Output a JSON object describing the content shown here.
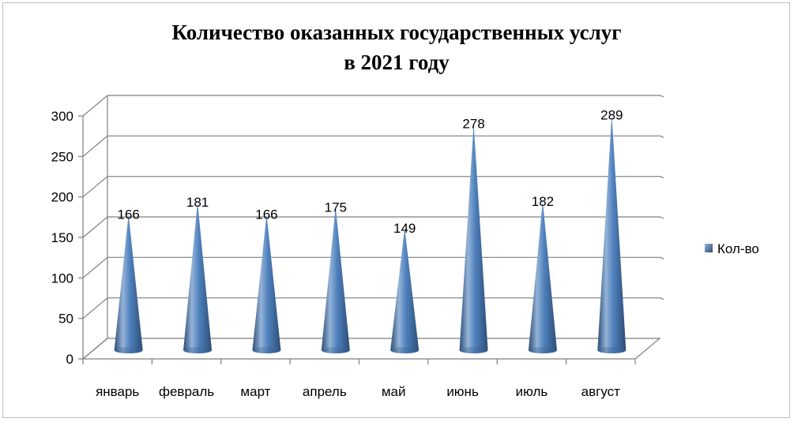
{
  "chart_data": {
    "type": "bar",
    "title_line1": "Количество оказанных государственных услуг",
    "title_line2": "в 2021 году",
    "categories": [
      "январь",
      "февраль",
      "март",
      "апрель",
      "май",
      "июнь",
      "июль",
      "август"
    ],
    "series": [
      {
        "name": "Кол-во",
        "values": [
          166,
          181,
          166,
          175,
          149,
          278,
          182,
          289
        ]
      }
    ],
    "yticks": [
      0,
      50,
      100,
      150,
      200,
      250,
      300
    ],
    "ylim": [
      0,
      300
    ],
    "grid": true,
    "legend_position": "right",
    "bar_shape": "cone-3d",
    "colors": {
      "cone": "#4f81bd",
      "cone_dark": "#2c4d75",
      "cone_light": "#95b3d7",
      "grid": "#7f7f7f",
      "axis": "#7f7f7f"
    }
  }
}
